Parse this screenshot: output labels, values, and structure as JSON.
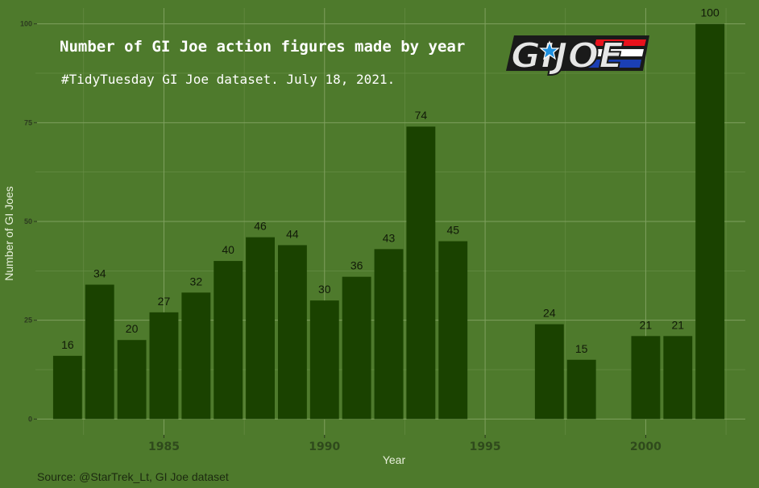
{
  "chart_data": {
    "type": "bar",
    "title": "Number of GI Joe action figures made by year",
    "subtitle": "#TidyTuesday GI Joe dataset. July 18, 2021.",
    "xlabel": "Year",
    "ylabel": "Number of GI Joes",
    "caption": "Source: @StarTrek_Lt, GI Joe dataset",
    "x": [
      1982,
      1983,
      1984,
      1985,
      1986,
      1987,
      1988,
      1989,
      1990,
      1991,
      1992,
      1993,
      1994,
      1997,
      1998,
      2000,
      2001,
      2002
    ],
    "values": [
      16,
      34,
      20,
      27,
      32,
      40,
      46,
      44,
      30,
      36,
      43,
      74,
      45,
      24,
      15,
      21,
      21,
      100
    ],
    "xlim": [
      1981,
      2003.1
    ],
    "ylim": [
      -4,
      104
    ],
    "xticks": [
      1985,
      1990,
      1995,
      2000
    ],
    "yticks": [
      0,
      25,
      50,
      75,
      100
    ],
    "grid": true,
    "legend": "none",
    "bar_color": "#1a4200",
    "background_color": "#4e7a2c"
  },
  "logo": {
    "text": "GIJOE",
    "stripe_colors": [
      "#e8121c",
      "#ffffff",
      "#1b3fb5"
    ]
  }
}
